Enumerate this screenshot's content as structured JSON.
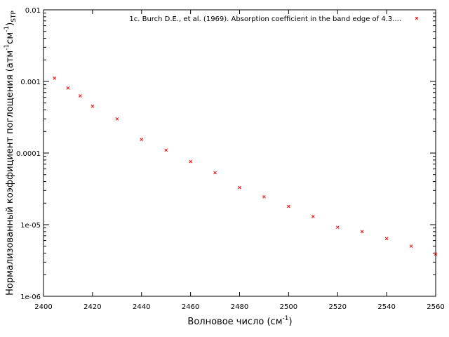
{
  "chart_data": {
    "type": "scatter",
    "xlabel": "Волновое число (см",
    "xlabel_sup": "-1",
    "xlabel_tail": ")",
    "ylabel": "Нормализованный коэффициент поглощения (атм",
    "ylabel_sup1": "-1",
    "ylabel_mid": "см",
    "ylabel_sup2": "-1",
    "ylabel_tail": ")",
    "ylabel_sub": "STP",
    "xlim": [
      2400,
      2560
    ],
    "ylim": [
      1e-06,
      0.01
    ],
    "yscale": "log",
    "x_ticks": [
      "2400",
      "2420",
      "2440",
      "2460",
      "2480",
      "2500",
      "2520",
      "2540",
      "2560"
    ],
    "x_tick_values": [
      2400,
      2420,
      2440,
      2460,
      2480,
      2500,
      2520,
      2540,
      2560
    ],
    "y_ticks": [
      "1e-06",
      "1e-05",
      "0.0001",
      "0.001",
      "0.01"
    ],
    "y_tick_values": [
      1e-06,
      1e-05,
      0.0001,
      0.001,
      0.01
    ],
    "grid": false,
    "legend_position": "top-right",
    "series": [
      {
        "name": "1c. Burch D.E., et al. (1969). Absorption coefficient in the band edge of 4.3....",
        "color": "#ff0000",
        "marker": "x",
        "x": [
          2404.5,
          2410,
          2415,
          2420,
          2430,
          2440,
          2450,
          2460,
          2470,
          2480,
          2490,
          2500,
          2510,
          2520,
          2530,
          2540,
          2550,
          2560
        ],
        "y": [
          0.00111,
          0.00081,
          0.00063,
          0.00045,
          0.0003,
          0.000155,
          0.00011,
          7.6e-05,
          5.3e-05,
          3.3e-05,
          2.45e-05,
          1.8e-05,
          1.3e-05,
          9.2e-06,
          8e-06,
          6.4e-06,
          5e-06,
          3.9e-06
        ]
      }
    ]
  }
}
